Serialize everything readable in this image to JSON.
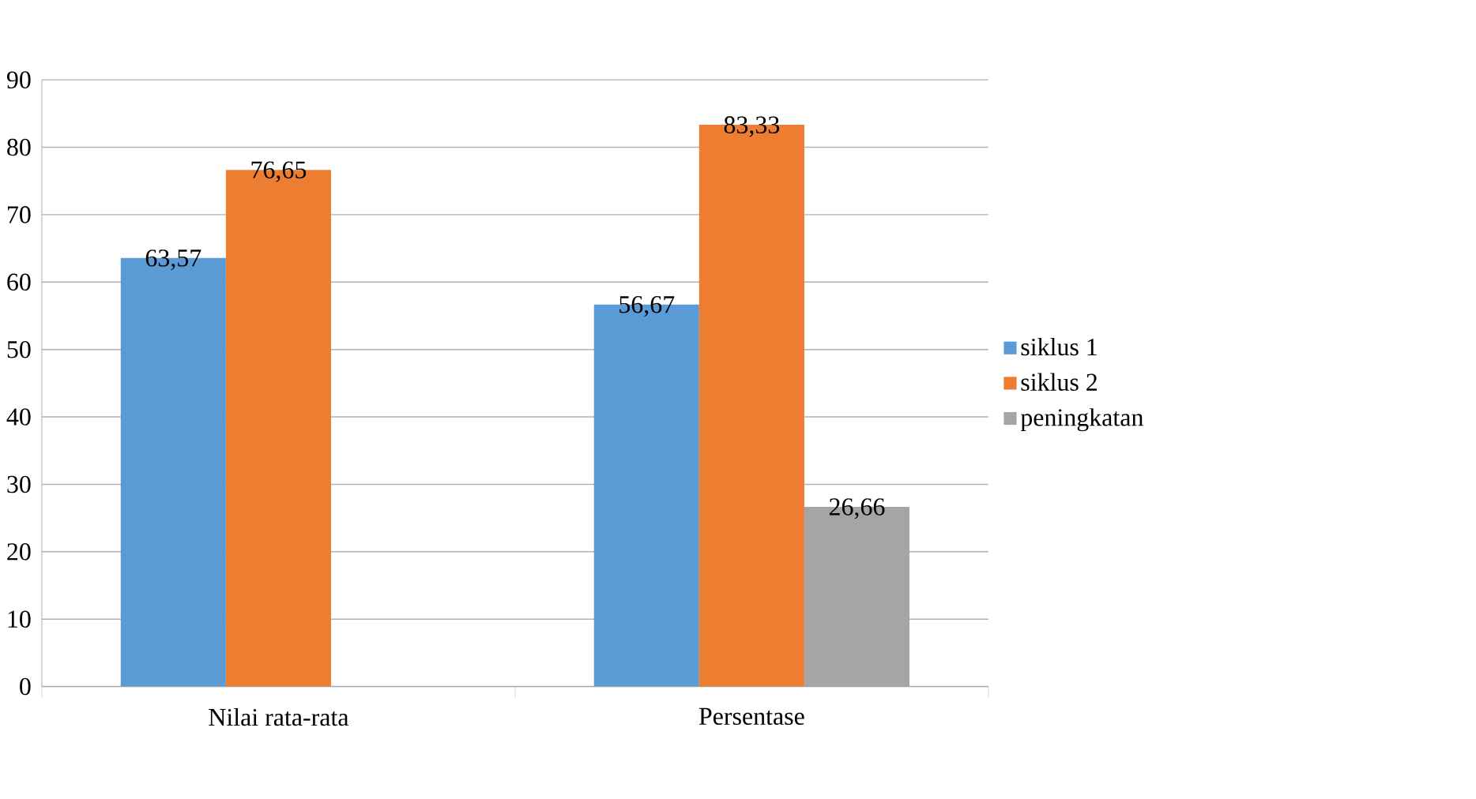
{
  "chart_data": {
    "type": "bar",
    "categories": [
      "Nilai rata-rata",
      "Persentase"
    ],
    "series": [
      {
        "name": "siklus 1",
        "color": "#5b9bd5",
        "values": [
          63.57,
          56.67
        ],
        "value_labels": [
          "63,57",
          "56,67"
        ]
      },
      {
        "name": "siklus 2",
        "color": "#ed7d31",
        "values": [
          76.65,
          83.33
        ],
        "value_labels": [
          "76,65",
          "83,33"
        ]
      },
      {
        "name": "peningkatan",
        "color": "#a5a5a5",
        "values": [
          null,
          26.66
        ],
        "value_labels": [
          null,
          "26,66"
        ]
      }
    ],
    "ylim": [
      0,
      90
    ],
    "yticks": [
      0,
      10,
      20,
      30,
      40,
      50,
      60,
      70,
      80,
      90
    ],
    "grid": "y",
    "legend": "right"
  }
}
